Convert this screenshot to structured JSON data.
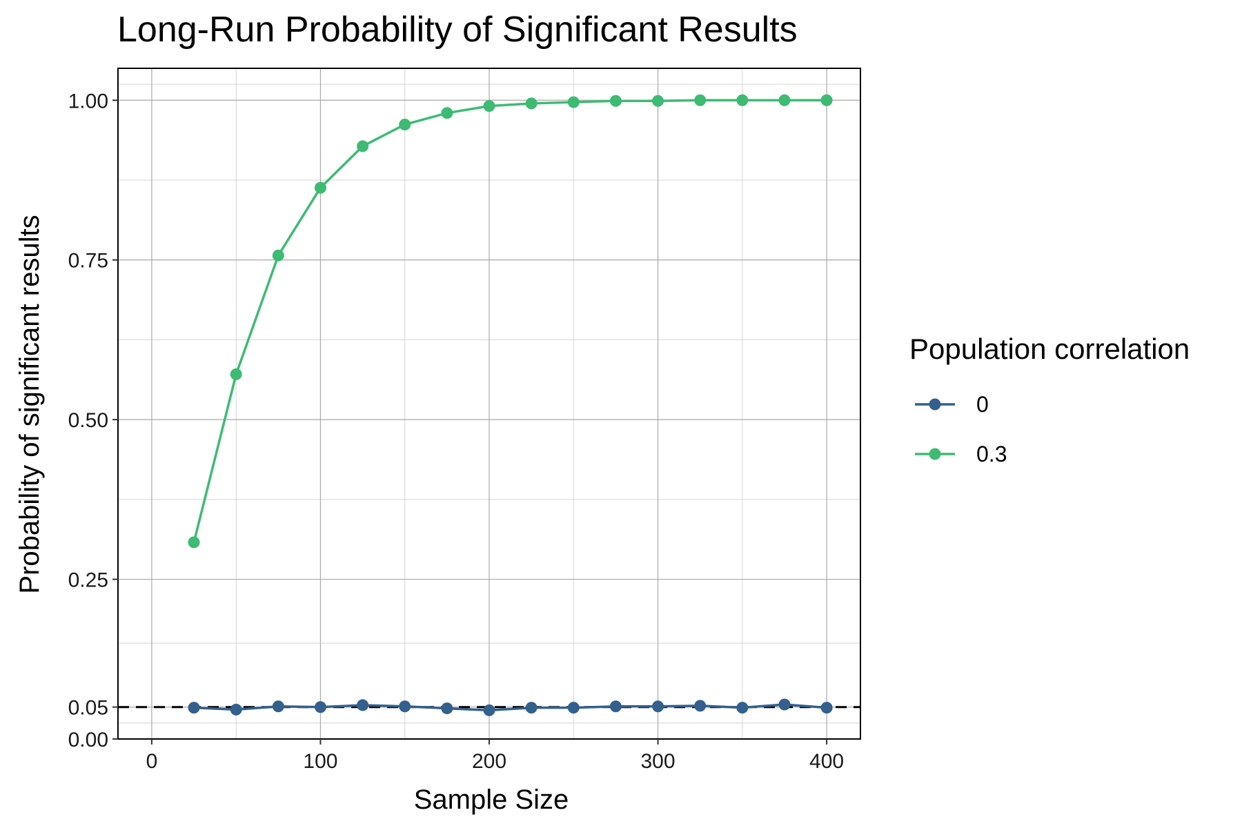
{
  "chart_data": {
    "type": "line",
    "title": "Long-Run Probability of Significant Results",
    "xlabel": "Sample Size",
    "ylabel": "Probability of significant results",
    "xlim": [
      -20,
      420
    ],
    "ylim": [
      0,
      1.05
    ],
    "x_ticks": [
      0,
      100,
      200,
      300,
      400
    ],
    "x_tick_labels": [
      "0",
      "100",
      "200",
      "300",
      "400"
    ],
    "y_ticks": [
      0,
      0.05,
      0.25,
      0.5,
      0.75,
      1.0
    ],
    "y_tick_labels": [
      "0.00",
      "0.05",
      "0.25",
      "0.50",
      "0.75",
      "1.00"
    ],
    "x_minor_ticks": [
      50,
      150,
      250,
      350
    ],
    "y_minor_ticks": [
      0.025,
      0.15,
      0.375,
      0.625,
      0.875,
      1.025
    ],
    "grid": true,
    "reference_line": {
      "y": 0.05,
      "style": "dashed",
      "color": "#000000"
    },
    "legend": {
      "title": "Population correlation",
      "placement": "right"
    },
    "x": [
      25,
      50,
      75,
      100,
      125,
      150,
      175,
      200,
      225,
      250,
      275,
      300,
      325,
      350,
      375,
      400
    ],
    "series": [
      {
        "name": "0",
        "color": "#33608c",
        "values": [
          0.049,
          0.046,
          0.051,
          0.05,
          0.053,
          0.051,
          0.048,
          0.045,
          0.049,
          0.049,
          0.051,
          0.051,
          0.052,
          0.049,
          0.054,
          0.049
        ]
      },
      {
        "name": "0.3",
        "color": "#3dbb73",
        "values": [
          0.308,
          0.571,
          0.757,
          0.863,
          0.928,
          0.962,
          0.98,
          0.991,
          0.995,
          0.997,
          0.999,
          0.999,
          1.0,
          1.0,
          1.0,
          1.0
        ]
      }
    ]
  }
}
